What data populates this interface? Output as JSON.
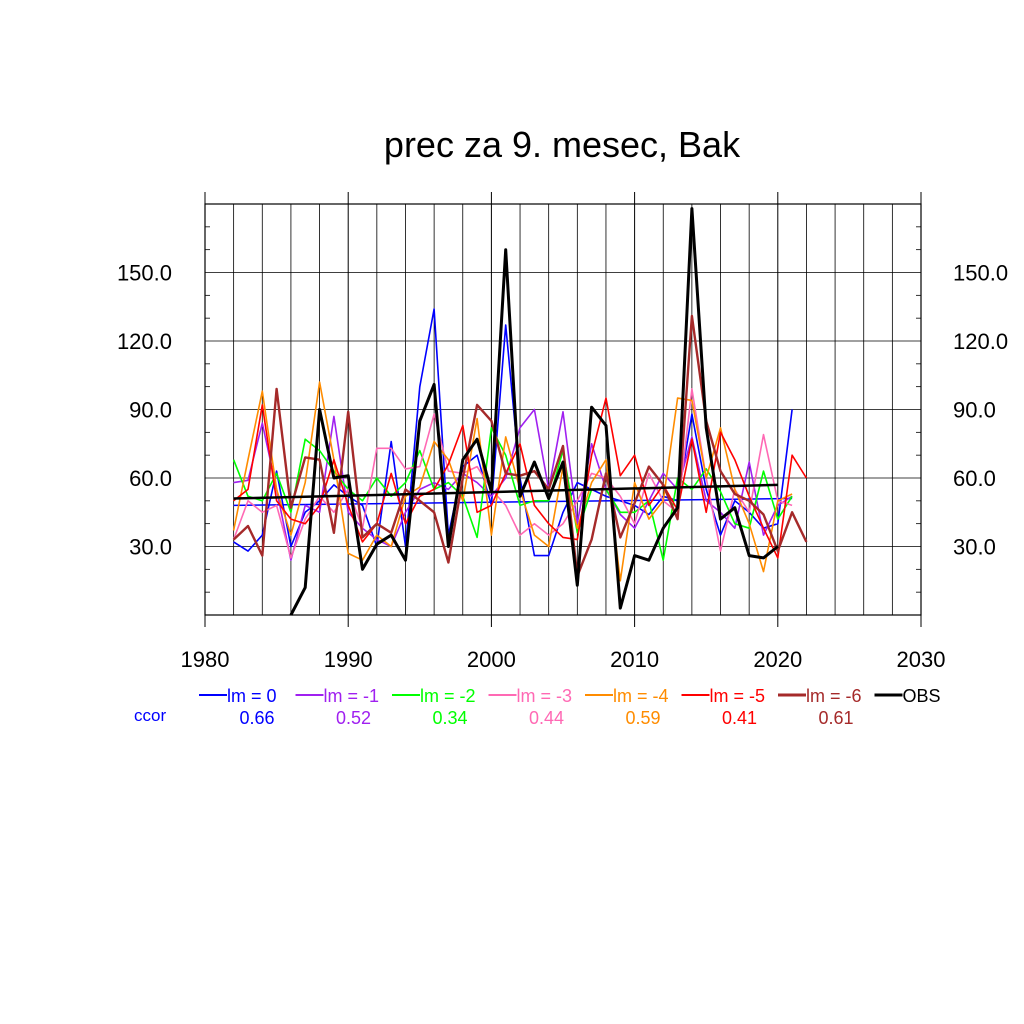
{
  "chart_data": {
    "type": "line",
    "title": "prec za 9. mesec, Bak",
    "xlim": [
      1980,
      2030
    ],
    "ylim": [
      0,
      180
    ],
    "x_ticks": [
      1980,
      1990,
      2000,
      2010,
      2020,
      2030
    ],
    "x_tick_labels": [
      "1980",
      "1990",
      "2000",
      "2010",
      "2020",
      "2030"
    ],
    "y_ticks": [
      30,
      60,
      90,
      120,
      150
    ],
    "y_tick_labels": [
      "30.0",
      "60.0",
      "90.0",
      "120.0",
      "150.0"
    ],
    "grid": true,
    "legend_position": "bottom",
    "ccor_label": "ccor",
    "ccor_color": "#0000ff",
    "series": [
      {
        "name": "lm = 0",
        "color": "#0000ff",
        "ccor": "0.66",
        "width": 1.6,
        "x": [
          1982,
          1983,
          1984,
          1985,
          1986,
          1987,
          1988,
          1989,
          1990,
          1991,
          1992,
          1993,
          1994,
          1995,
          1996,
          1997,
          1998,
          1999,
          2000,
          2001,
          2002,
          2003,
          2004,
          2005,
          2006,
          2007,
          2008,
          2009,
          2010,
          2011,
          2012,
          2013,
          2014,
          2015,
          2016,
          2017,
          2018,
          2019,
          2020,
          2021
        ],
        "y": [
          32,
          28,
          35,
          63,
          30,
          45,
          50,
          57,
          52,
          48,
          30,
          76,
          30,
          100,
          134,
          35,
          65,
          70,
          48,
          127,
          60,
          26,
          26,
          45,
          58,
          55,
          52,
          50,
          48,
          44,
          52,
          50,
          88,
          55,
          35,
          50,
          45,
          38,
          40,
          90
        ],
        "trend": [
          [
            1982,
            48
          ],
          [
            2021,
            51
          ]
        ]
      },
      {
        "name": "lm = -1",
        "color": "#a020f0",
        "ccor": "0.52",
        "width": 1.6,
        "x": [
          1982,
          1983,
          1984,
          1985,
          1986,
          1987,
          1988,
          1989,
          1990,
          1991,
          1992,
          1993,
          1994,
          1995,
          1996,
          1997,
          1998,
          1999,
          2000,
          2001,
          2002,
          2003,
          2004,
          2005,
          2006,
          2007,
          2008,
          2009,
          2010,
          2011,
          2012,
          2013,
          2014,
          2015,
          2016,
          2017,
          2018,
          2019,
          2020,
          2021
        ],
        "y": [
          58,
          59,
          84,
          55,
          24,
          48,
          45,
          87,
          45,
          38,
          33,
          30,
          45,
          55,
          58,
          55,
          62,
          58,
          52,
          60,
          82,
          90,
          55,
          89,
          40,
          75,
          55,
          44,
          38,
          50,
          62,
          55,
          78,
          50,
          45,
          38,
          67,
          35,
          48,
          52
        ]
      },
      {
        "name": "lm = -2",
        "color": "#00ff00",
        "ccor": "0.34",
        "width": 1.6,
        "x": [
          1982,
          1983,
          1984,
          1985,
          1986,
          1987,
          1988,
          1989,
          1990,
          1991,
          1992,
          1993,
          1994,
          1995,
          1996,
          1997,
          1998,
          1999,
          2000,
          2001,
          2002,
          2003,
          2004,
          2005,
          2006,
          2007,
          2008,
          2009,
          2010,
          2011,
          2012,
          2013,
          2014,
          2015,
          2016,
          2017,
          2018,
          2019,
          2020,
          2021
        ],
        "y": [
          68,
          52,
          50,
          62,
          45,
          77,
          72,
          63,
          55,
          50,
          60,
          52,
          58,
          72,
          55,
          58,
          52,
          34,
          82,
          70,
          48,
          50,
          50,
          72,
          36,
          55,
          55,
          45,
          45,
          50,
          24,
          60,
          55,
          64,
          54,
          40,
          38,
          63,
          42,
          52
        ]
      },
      {
        "name": "lm = -3",
        "color": "#ff69b4",
        "ccor": "0.44",
        "width": 1.6,
        "x": [
          1982,
          1983,
          1984,
          1985,
          1986,
          1987,
          1988,
          1989,
          1990,
          1991,
          1992,
          1993,
          1994,
          1995,
          1996,
          1997,
          1998,
          1999,
          2000,
          2001,
          2002,
          2003,
          2004,
          2005,
          2006,
          2007,
          2008,
          2009,
          2010,
          2011,
          2012,
          2013,
          2014,
          2015,
          2016,
          2017,
          2018,
          2019,
          2020,
          2021
        ],
        "y": [
          33,
          50,
          45,
          48,
          25,
          42,
          52,
          45,
          55,
          38,
          73,
          73,
          64,
          65,
          88,
          63,
          62,
          65,
          55,
          48,
          35,
          40,
          35,
          40,
          50,
          62,
          60,
          52,
          40,
          62,
          50,
          45,
          99,
          60,
          28,
          55,
          45,
          79,
          50,
          48
        ]
      },
      {
        "name": "lm = -4",
        "color": "#ff8c00",
        "ccor": "0.59",
        "width": 1.6,
        "x": [
          1982,
          1983,
          1984,
          1985,
          1986,
          1987,
          1988,
          1989,
          1990,
          1991,
          1992,
          1993,
          1994,
          1995,
          1996,
          1997,
          1998,
          1999,
          2000,
          2001,
          2002,
          2003,
          2004,
          2005,
          2006,
          2007,
          2008,
          2009,
          2010,
          2011,
          2012,
          2013,
          2014,
          2015,
          2016,
          2017,
          2018,
          2019,
          2020,
          2021
        ],
        "y": [
          37,
          68,
          98,
          55,
          35,
          58,
          102,
          68,
          27,
          24,
          35,
          30,
          52,
          56,
          76,
          68,
          50,
          86,
          35,
          78,
          55,
          35,
          30,
          65,
          38,
          58,
          68,
          15,
          58,
          42,
          50,
          95,
          94,
          60,
          82,
          55,
          40,
          19,
          50,
          53
        ]
      },
      {
        "name": "lm = -5",
        "color": "#ff0000",
        "ccor": "0.41",
        "width": 1.6,
        "x": [
          1982,
          1983,
          1984,
          1985,
          1986,
          1987,
          1988,
          1989,
          1990,
          1991,
          1992,
          1993,
          1994,
          1995,
          1996,
          1997,
          1998,
          1999,
          2000,
          2001,
          2002,
          2003,
          2004,
          2005,
          2006,
          2007,
          2008,
          2009,
          2010,
          2011,
          2012,
          2013,
          2014,
          2015,
          2016,
          2017,
          2018,
          2019,
          2020,
          2021,
          2022
        ],
        "y": [
          50,
          55,
          92,
          50,
          42,
          40,
          48,
          68,
          48,
          32,
          40,
          62,
          40,
          52,
          55,
          66,
          83,
          45,
          48,
          62,
          75,
          48,
          40,
          34,
          33,
          70,
          95,
          61,
          70,
          48,
          57,
          46,
          77,
          45,
          80,
          68,
          52,
          38,
          25,
          70,
          60
        ]
      },
      {
        "name": "lm = -6",
        "color": "#a52a2a",
        "ccor": "0.61",
        "width": 2.4,
        "x": [
          1982,
          1983,
          1984,
          1985,
          1986,
          1987,
          1988,
          1989,
          1990,
          1991,
          1992,
          1993,
          1994,
          1995,
          1996,
          1997,
          1998,
          1999,
          2000,
          2001,
          2002,
          2003,
          2004,
          2005,
          2006,
          2007,
          2008,
          2009,
          2010,
          2011,
          2012,
          2013,
          2014,
          2015,
          2016,
          2017,
          2018,
          2019,
          2020,
          2021,
          2022
        ],
        "y": [
          33,
          39,
          26,
          99,
          47,
          69,
          68,
          36,
          89,
          34,
          40,
          36,
          55,
          50,
          45,
          23,
          60,
          92,
          85,
          62,
          61,
          63,
          55,
          74,
          17,
          33,
          62,
          34,
          49,
          65,
          57,
          42,
          131,
          85,
          63,
          53,
          50,
          44,
          28,
          45,
          32
        ]
      },
      {
        "name": "OBS",
        "color": "#000000",
        "ccor": "",
        "width": 3,
        "x": [
          1986,
          1987,
          1988,
          1989,
          1990,
          1991,
          1992,
          1993,
          1994,
          1995,
          1996,
          1997,
          1998,
          1999,
          2000,
          2001,
          2002,
          2003,
          2004,
          2005,
          2006,
          2007,
          2008,
          2009,
          2010,
          2011,
          2012,
          2013,
          2014,
          2015,
          2016,
          2017,
          2018,
          2019,
          2020
        ],
        "y": [
          0,
          12,
          90,
          60,
          61,
          20,
          31,
          35,
          24,
          85,
          101,
          30,
          68,
          77,
          54,
          160,
          52,
          67,
          51,
          67,
          13,
          91,
          83,
          3,
          26,
          24,
          38,
          47,
          178,
          82,
          42,
          47,
          26,
          25,
          30
        ],
        "trend": [
          [
            1982,
            51
          ],
          [
            2020,
            57
          ]
        ]
      }
    ]
  }
}
